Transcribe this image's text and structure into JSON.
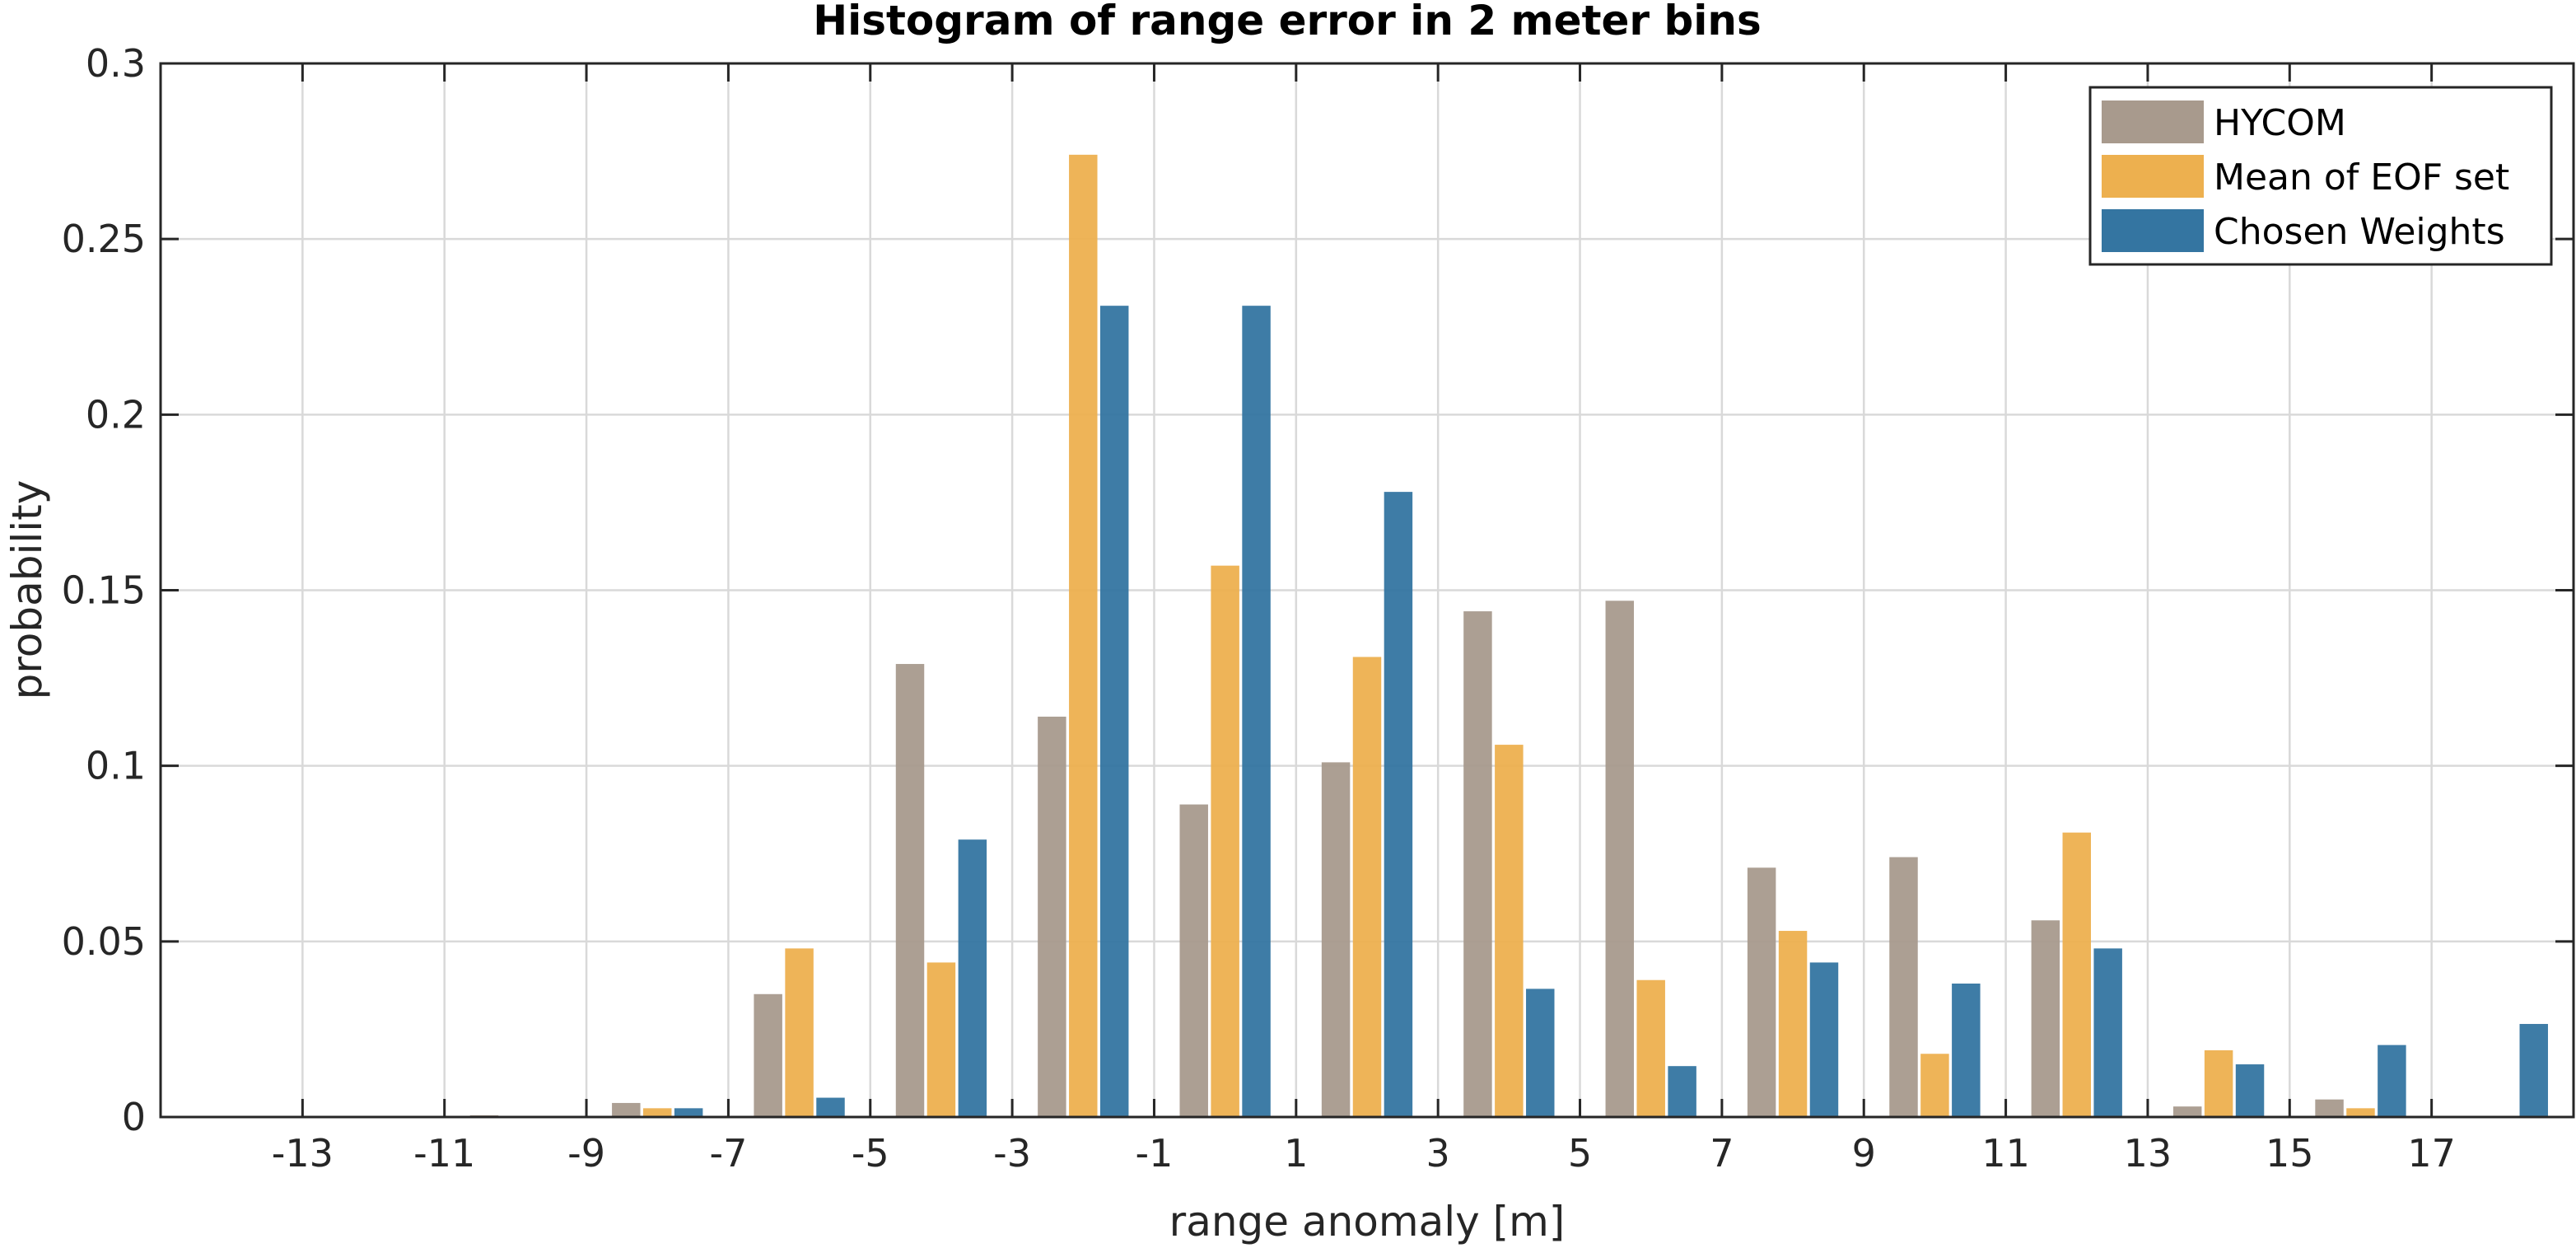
{
  "chart_data": {
    "type": "bar",
    "title": "Histogram of range error in 2 meter bins",
    "xlabel": "range anomaly [m]",
    "ylabel": "probability",
    "xlim": [
      -15,
      19
    ],
    "ylim": [
      0,
      0.3
    ],
    "xticks": [
      -13,
      -11,
      -9,
      -7,
      -5,
      -3,
      -1,
      1,
      3,
      5,
      7,
      9,
      11,
      13,
      15,
      17
    ],
    "yticks": [
      0,
      0.05,
      0.1,
      0.15,
      0.2,
      0.25,
      0.3
    ],
    "ytick_labels": [
      "0",
      "0.05",
      "0.1",
      "0.15",
      "0.2",
      "0.25",
      "0.3"
    ],
    "grid": true,
    "legend_position": "top-right",
    "bin_centers": [
      -14,
      -12,
      -10,
      -8,
      -6,
      -4,
      -2,
      0,
      2,
      4,
      6,
      8,
      10,
      12,
      14,
      16,
      18
    ],
    "series": [
      {
        "name": "HYCOM",
        "color": "#a89a8d",
        "values": [
          0,
          0,
          0.0005,
          0.004,
          0.035,
          0.129,
          0.114,
          0.089,
          0.101,
          0.144,
          0.147,
          0.071,
          0.074,
          0.056,
          0.003,
          0.005,
          0
        ]
      },
      {
        "name": "Mean of EOF set",
        "color": "#edb04f",
        "values": [
          0,
          0,
          0,
          0.0025,
          0.048,
          0.044,
          0.274,
          0.157,
          0.131,
          0.106,
          0.039,
          0.053,
          0.018,
          0.081,
          0.019,
          0.0025,
          0
        ]
      },
      {
        "name": "Chosen Weights",
        "color": "#3475a1",
        "values": [
          0,
          0,
          0,
          0.0025,
          0.0055,
          0.079,
          0.231,
          0.231,
          0.178,
          0.0365,
          0.0145,
          0.044,
          0.038,
          0.048,
          0.015,
          0.0205,
          0.0265
        ]
      }
    ]
  }
}
